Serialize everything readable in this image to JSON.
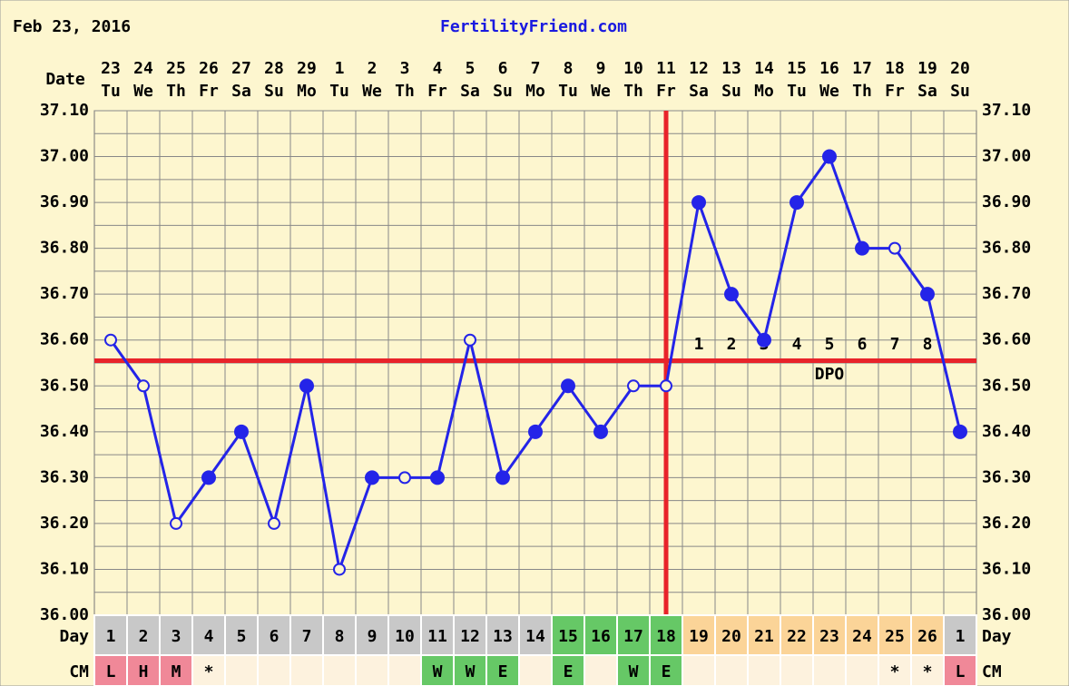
{
  "header": {
    "date": "Feb 23, 2016",
    "site": "FertilityFriend.com"
  },
  "chart_data": {
    "type": "line",
    "x_label": "Date",
    "categories": [
      "23",
      "24",
      "25",
      "26",
      "27",
      "28",
      "29",
      "1",
      "2",
      "3",
      "4",
      "5",
      "6",
      "7",
      "8",
      "9",
      "10",
      "11",
      "12",
      "13",
      "14",
      "15",
      "16",
      "17",
      "18",
      "19",
      "20"
    ],
    "weekdays": [
      "Tu",
      "We",
      "Th",
      "Fr",
      "Sa",
      "Su",
      "Mo",
      "Tu",
      "We",
      "Th",
      "Fr",
      "Sa",
      "Su",
      "Mo",
      "Tu",
      "We",
      "Th",
      "Fr",
      "Sa",
      "Su",
      "Mo",
      "Tu",
      "We",
      "Th",
      "Fr",
      "Sa",
      "Su"
    ],
    "values": [
      36.6,
      36.5,
      36.2,
      36.3,
      36.4,
      36.2,
      36.5,
      36.1,
      36.3,
      36.3,
      36.3,
      36.6,
      36.3,
      36.4,
      36.5,
      36.4,
      36.5,
      36.5,
      36.9,
      36.7,
      36.6,
      36.9,
      37.0,
      36.8,
      36.8,
      36.7,
      36.4
    ],
    "hollow": [
      true,
      true,
      true,
      false,
      false,
      true,
      false,
      true,
      false,
      true,
      false,
      true,
      false,
      false,
      false,
      false,
      true,
      true,
      false,
      false,
      false,
      false,
      false,
      false,
      true,
      false,
      false
    ],
    "color": "#2424e8",
    "ylim": [
      36.0,
      37.1
    ],
    "yticks": [
      {
        "value": 36.0,
        "label": "36.00"
      },
      {
        "value": 36.1,
        "label": "36.10"
      },
      {
        "value": 36.2,
        "label": "36.20"
      },
      {
        "value": 36.3,
        "label": "36.30"
      },
      {
        "value": 36.4,
        "label": "36.40"
      },
      {
        "value": 36.5,
        "label": "36.50"
      },
      {
        "value": 36.6,
        "label": "36.60"
      },
      {
        "value": 36.7,
        "label": "36.70"
      },
      {
        "value": 36.8,
        "label": "36.80"
      },
      {
        "value": 36.9,
        "label": "36.90"
      },
      {
        "value": 37.0,
        "label": "37.00"
      },
      {
        "value": 37.1,
        "label": "37.10"
      }
    ],
    "grid": true,
    "coverline": 36.555,
    "ovulation_day": 18,
    "line_color": "#e8232a",
    "dpo_labels": [
      "1",
      "2",
      "3",
      "4",
      "5",
      "6",
      "7",
      "8"
    ],
    "dpo_title": "DPO",
    "rows": [
      {
        "label": "Day",
        "values": [
          "1",
          "2",
          "3",
          "4",
          "5",
          "6",
          "7",
          "8",
          "9",
          "10",
          "11",
          "12",
          "13",
          "14",
          "15",
          "16",
          "17",
          "18",
          "19",
          "20",
          "21",
          "22",
          "23",
          "24",
          "25",
          "26",
          "1"
        ],
        "colors": [
          "#c8c8c8",
          "#c8c8c8",
          "#c8c8c8",
          "#c8c8c8",
          "#c8c8c8",
          "#c8c8c8",
          "#c8c8c8",
          "#c8c8c8",
          "#c8c8c8",
          "#c8c8c8",
          "#c8c8c8",
          "#c8c8c8",
          "#c8c8c8",
          "#c8c8c8",
          "#66c866",
          "#66c866",
          "#66c866",
          "#66c866",
          "#fbd498",
          "#fbd498",
          "#fbd498",
          "#fbd498",
          "#fbd498",
          "#fbd498",
          "#fbd498",
          "#fbd498",
          "#c8c8c8"
        ]
      },
      {
        "label": "CM",
        "values": [
          "L",
          "H",
          "M",
          "*",
          null,
          null,
          null,
          null,
          null,
          null,
          "W",
          "W",
          "E",
          null,
          "E",
          null,
          "W",
          "E",
          null,
          null,
          null,
          null,
          null,
          null,
          "*",
          "*",
          "L"
        ],
        "colors": [
          "#f08898",
          "#f08898",
          "#f08898",
          "#fdf2de",
          "#fdf2de",
          "#fdf2de",
          "#fdf2de",
          "#fdf2de",
          "#fdf2de",
          "#fdf2de",
          "#66c866",
          "#66c866",
          "#66c866",
          "#fdf2de",
          "#66c866",
          "#fdf2de",
          "#66c866",
          "#66c866",
          "#fdf2de",
          "#fdf2de",
          "#fdf2de",
          "#fdf2de",
          "#fdf2de",
          "#fdf2de",
          "#fdf2de",
          "#fdf2de",
          "#f08898"
        ]
      }
    ]
  }
}
